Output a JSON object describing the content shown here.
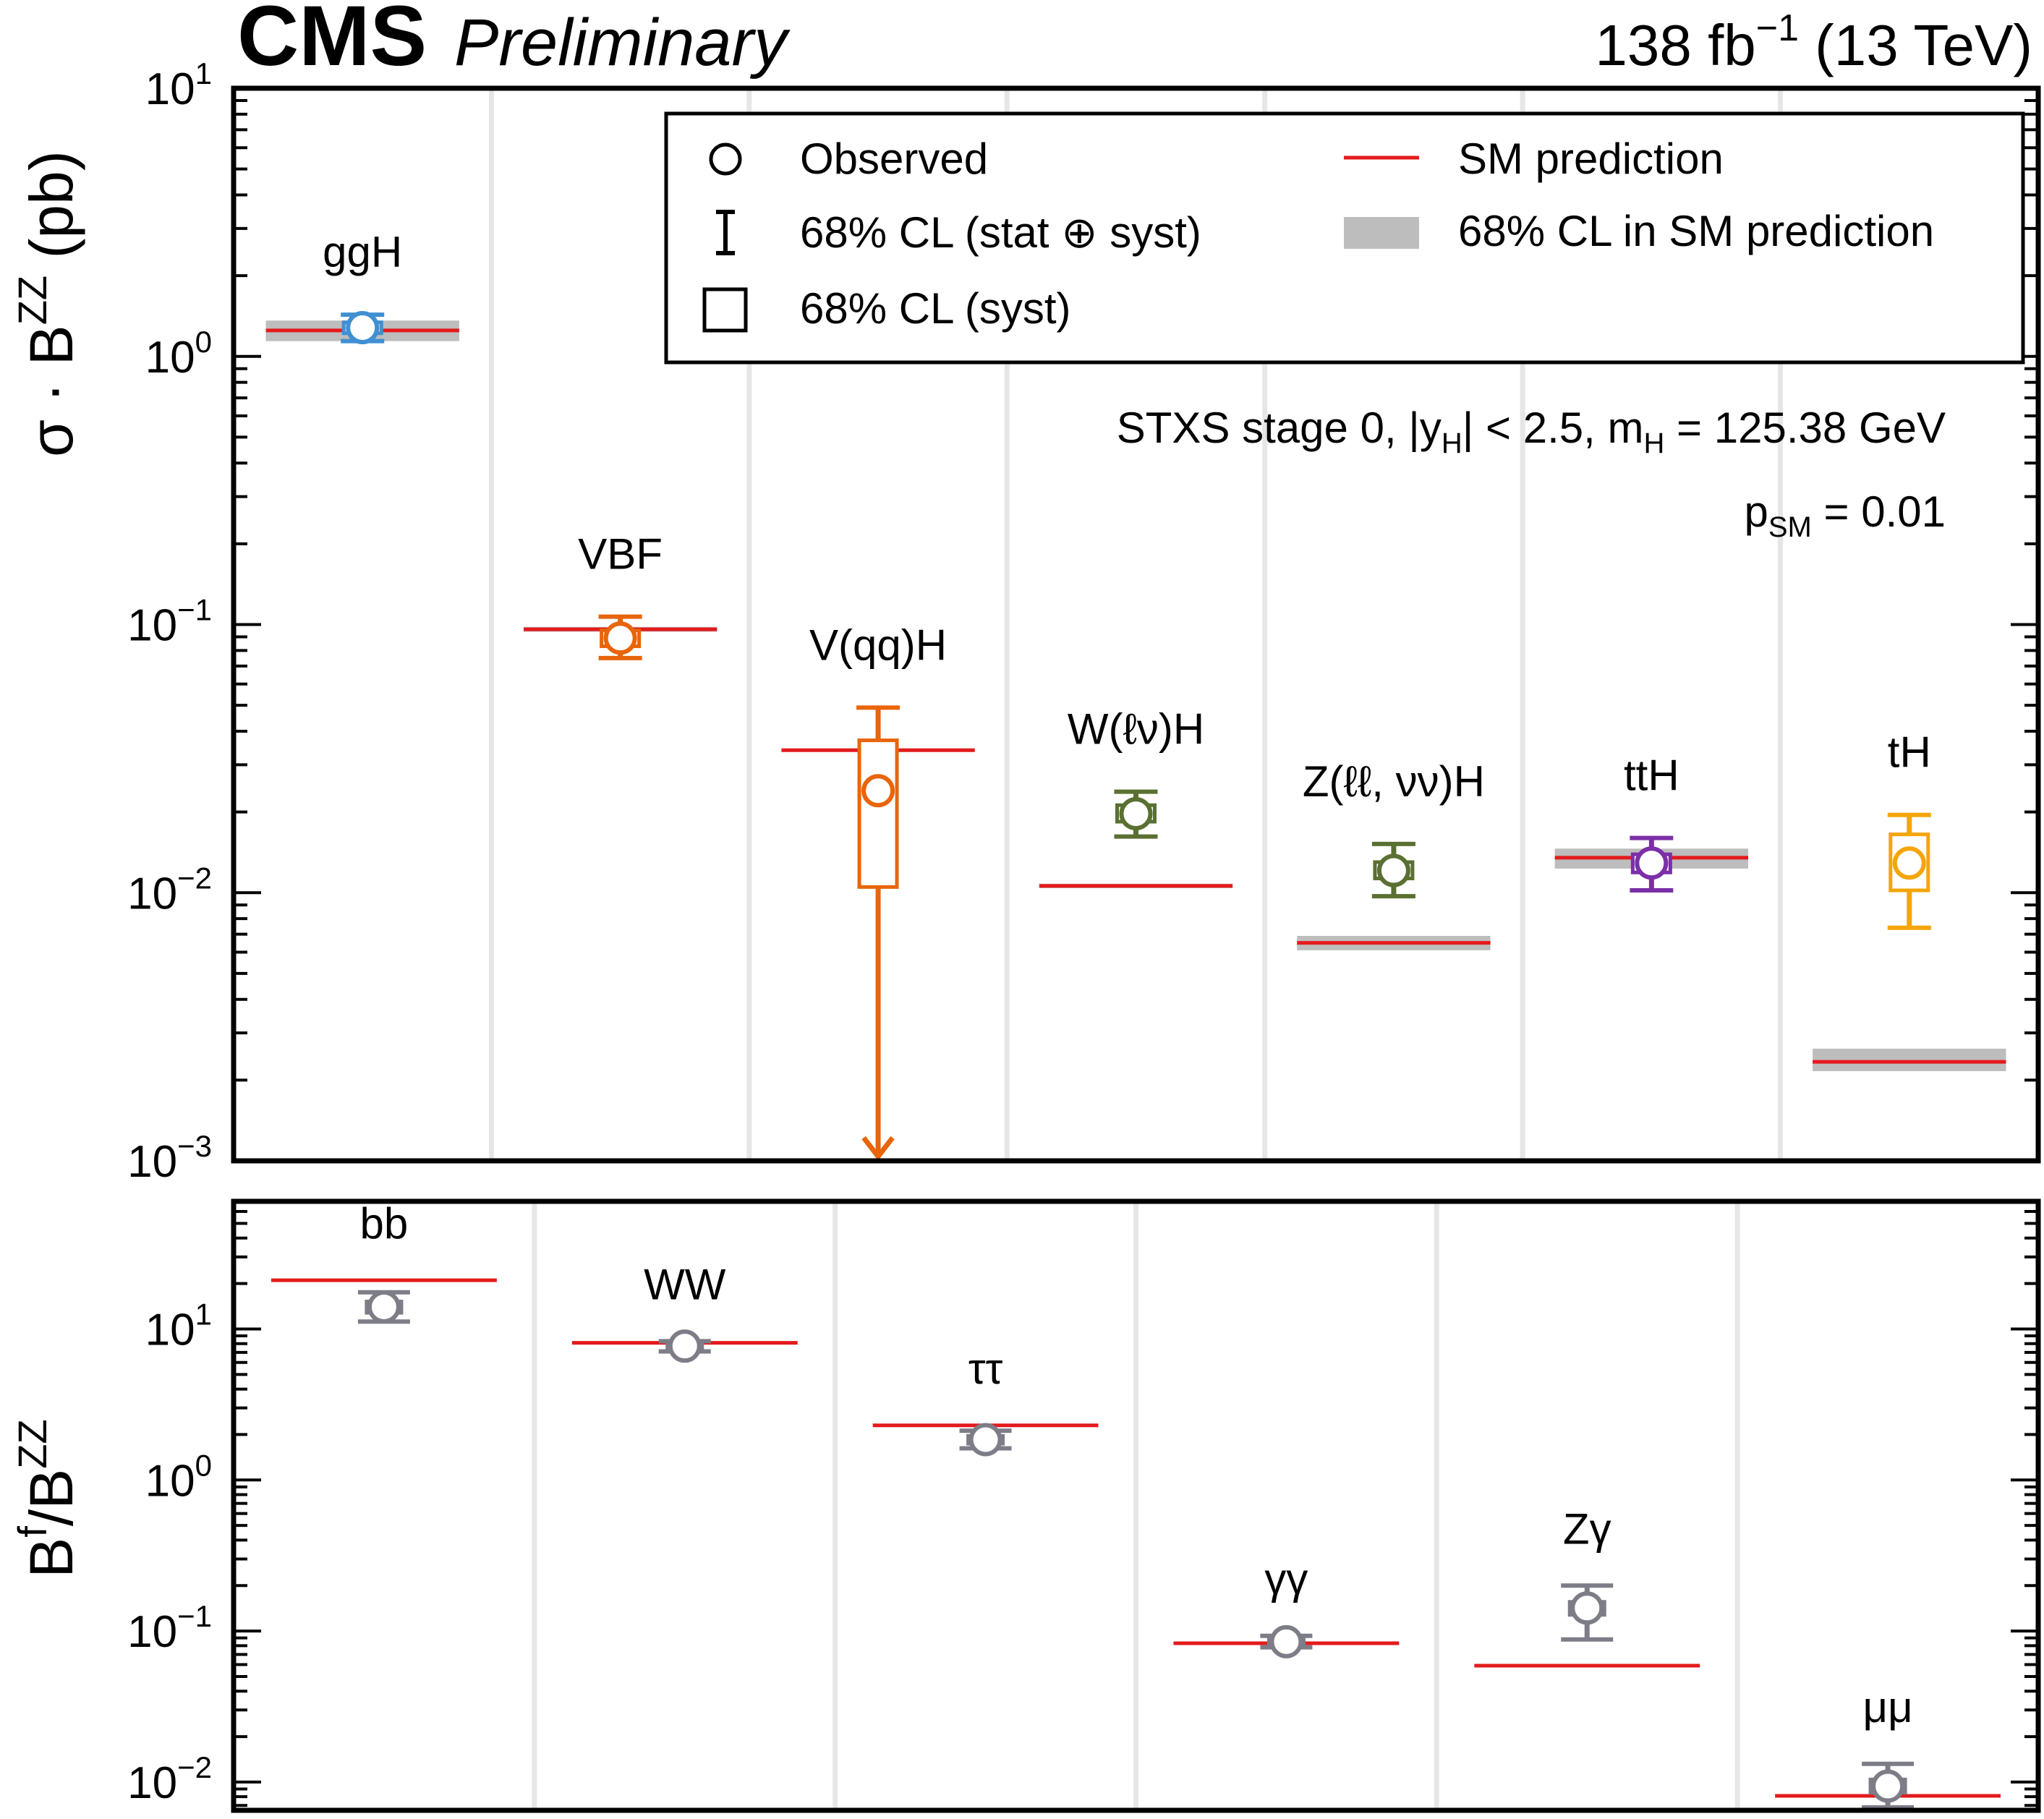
{
  "header": {
    "experiment": "CMS",
    "status": "Preliminary",
    "lumi_value": "138 fb",
    "lumi_exp": "−1",
    "energy": "(13 TeV)"
  },
  "legend": {
    "observed": "Observed",
    "total_unc": "68% CL (stat ⊕ syst)",
    "syst_unc": "68% CL (syst)",
    "sm_pred": "SM prediction",
    "sm_band": "68% CL in SM prediction"
  },
  "annotations": {
    "stxs": "STXS stage 0, |y",
    "stxs_sub1": "H",
    "stxs_mid": "| < 2.5, m",
    "stxs_sub2": "H",
    "stxs_end": " = 125.38 GeV",
    "psm_p": "p",
    "psm_sub": "SM",
    "psm_val": " = 0.01"
  },
  "colors": {
    "sm_line": "#e41a1c",
    "sm_band": "#bdbdbd",
    "ggH": "#3f8fd2",
    "VBF": "#e8650a",
    "VqqH": "#e8650a",
    "WlnuH": "#5a7032",
    "ZH": "#5a7032",
    "ttH": "#7b2fa8",
    "tH": "#f5a50a",
    "ratio": "#7d7d87"
  },
  "chart_data": [
    {
      "type": "scatter",
      "panel": "top",
      "ylabel_main": "σ · B",
      "ylabel_sup": "ZZ",
      "ylabel_unit": " (pb)",
      "yscale": "log",
      "ylim": [
        0.001,
        10
      ],
      "y_ticks": [
        {
          "base": "10",
          "exp": "1",
          "value": 10
        },
        {
          "base": "10",
          "exp": "0",
          "value": 1
        },
        {
          "base": "10",
          "exp": "−1",
          "value": 0.1
        },
        {
          "base": "10",
          "exp": "−2",
          "value": 0.01
        },
        {
          "base": "10",
          "exp": "−3",
          "value": 0.001
        }
      ],
      "categories": [
        {
          "label": "ggH",
          "color_key": "ggH",
          "obs": 1.28,
          "tot_lo": 1.14,
          "tot_hi": 1.43,
          "sys_lo": 1.22,
          "sys_hi": 1.34,
          "sm": 1.25,
          "sm_lo": 1.14,
          "sm_hi": 1.36
        },
        {
          "label": "VBF",
          "color_key": "VBF",
          "obs": 0.089,
          "tot_lo": 0.075,
          "tot_hi": 0.107,
          "sys_lo": 0.083,
          "sys_hi": 0.095,
          "sm": 0.096,
          "sm_lo": 0.094,
          "sm_hi": 0.098
        },
        {
          "label": "V(qq)H",
          "color_key": "VqqH",
          "obs": 0.024,
          "tot_lo": 0.001,
          "tot_hi": 0.049,
          "sys_lo": 0.0105,
          "sys_hi": 0.037,
          "sm": 0.034,
          "sm_lo": 0.0335,
          "sm_hi": 0.0345,
          "arrow_down": true
        },
        {
          "label": "W(ℓν)H",
          "color_key": "WlnuH",
          "obs": 0.0197,
          "tot_lo": 0.0162,
          "tot_hi": 0.0238,
          "sys_lo": 0.0184,
          "sys_hi": 0.0212,
          "sm": 0.0106,
          "sm_lo": 0.0104,
          "sm_hi": 0.0108
        },
        {
          "label": "Z(ℓℓ, νν)H",
          "color_key": "ZH",
          "obs": 0.0121,
          "tot_lo": 0.0097,
          "tot_hi": 0.0152,
          "sys_lo": 0.0113,
          "sys_hi": 0.013,
          "sm": 0.0065,
          "sm_lo": 0.0061,
          "sm_hi": 0.0069
        },
        {
          "label": "ttH",
          "color_key": "ttH",
          "obs": 0.0129,
          "tot_lo": 0.0102,
          "tot_hi": 0.016,
          "sys_lo": 0.0119,
          "sys_hi": 0.0139,
          "sm": 0.0135,
          "sm_lo": 0.0123,
          "sm_hi": 0.0146
        },
        {
          "label": "tH",
          "color_key": "tH",
          "obs": 0.0129,
          "tot_lo": 0.0074,
          "tot_hi": 0.0195,
          "sys_lo": 0.0102,
          "sys_hi": 0.0165,
          "sm": 0.00234,
          "sm_lo": 0.00216,
          "sm_hi": 0.00262
        }
      ]
    },
    {
      "type": "scatter",
      "panel": "bottom",
      "ylabel_main": "B",
      "ylabel_sup1": "f",
      "ylabel_mid": "/B",
      "ylabel_sup2": "ZZ",
      "yscale": "log",
      "ylim": [
        0.0065,
        70
      ],
      "y_ticks": [
        {
          "base": "10",
          "exp": "1",
          "value": 10
        },
        {
          "base": "10",
          "exp": "0",
          "value": 1
        },
        {
          "base": "10",
          "exp": "−1",
          "value": 0.1
        },
        {
          "base": "10",
          "exp": "−2",
          "value": 0.01
        }
      ],
      "categories": [
        {
          "label": "bb",
          "obs": 14.0,
          "tot_lo": 11.2,
          "tot_hi": 17.5,
          "sys_lo": 12.8,
          "sys_hi": 15.2,
          "sm": 21.0
        },
        {
          "label": "WW",
          "obs": 7.7,
          "tot_lo": 7.1,
          "tot_hi": 8.3,
          "sys_lo": 7.4,
          "sys_hi": 8.0,
          "sm": 8.1
        },
        {
          "label": "ττ",
          "obs": 1.85,
          "tot_lo": 1.62,
          "tot_hi": 2.12,
          "sys_lo": 1.74,
          "sys_hi": 1.96,
          "sm": 2.3
        },
        {
          "label": "γγ",
          "obs": 0.085,
          "tot_lo": 0.078,
          "tot_hi": 0.093,
          "sys_lo": 0.082,
          "sys_hi": 0.089,
          "sm": 0.083
        },
        {
          "label": "Zγ",
          "obs": 0.142,
          "tot_lo": 0.088,
          "tot_hi": 0.2,
          "sys_lo": 0.128,
          "sys_hi": 0.156,
          "sm": 0.059
        },
        {
          "label": "μμ",
          "obs": 0.0094,
          "tot_lo": 0.0068,
          "tot_hi": 0.0132,
          "sys_lo": 0.0085,
          "sys_hi": 0.0104,
          "sm": 0.0081
        }
      ]
    }
  ]
}
